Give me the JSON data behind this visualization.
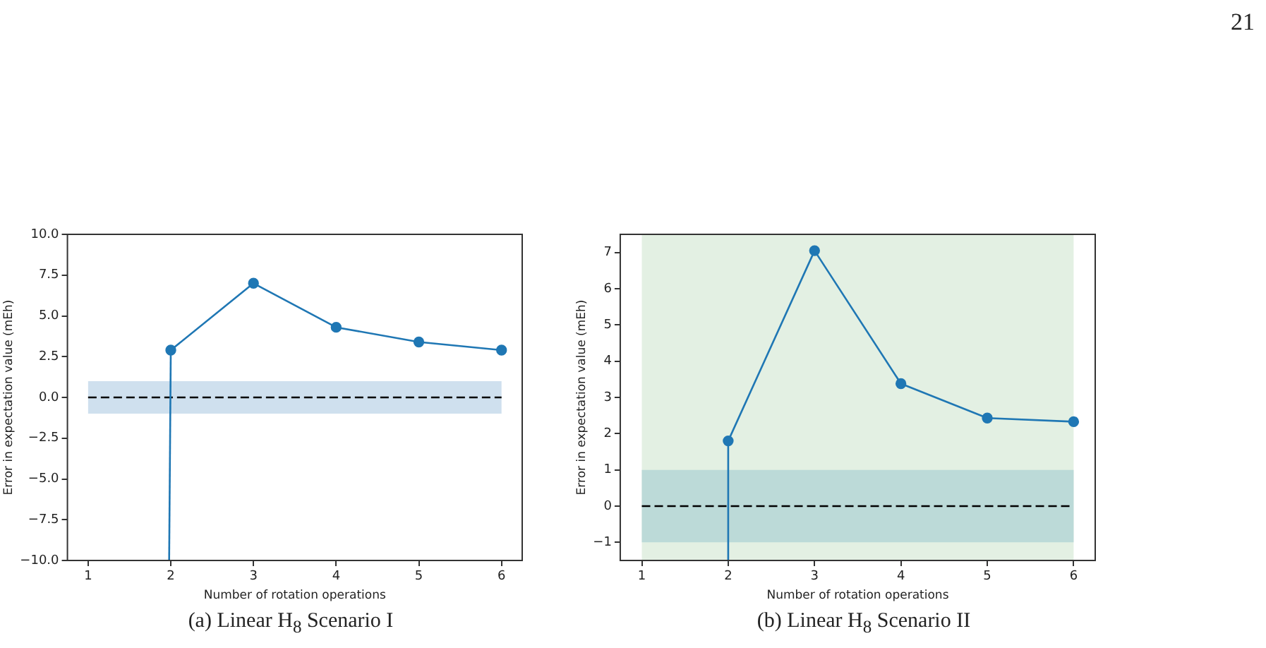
{
  "chart_data": [
    {
      "type": "line",
      "title": "(a) Linear H$_{8}$ Scenario I",
      "xlabel": "Number of rotation operations",
      "ylabel": "Error in expectation value (mEh)",
      "xlim": [
        0.75,
        6.25
      ],
      "xticks": [
        1,
        2,
        3,
        4,
        5,
        6
      ],
      "ylim": [
        -10,
        10
      ],
      "yticks": [
        {
          "value": -10,
          "label": "−10.0"
        },
        {
          "value": -7.5,
          "label": "−7.5"
        },
        {
          "value": -5,
          "label": "−5.0"
        },
        {
          "value": -2.5,
          "label": "−2.5"
        },
        {
          "value": 0,
          "label": "0.0"
        },
        {
          "value": 2.5,
          "label": "2.5"
        },
        {
          "value": 5,
          "label": "5.0"
        },
        {
          "value": 7.5,
          "label": "7.5"
        },
        {
          "value": 10,
          "label": "10.0"
        }
      ],
      "grid": false,
      "legend": false,
      "annotations": [
        "21"
      ],
      "series": [
        {
          "color": "#1f77b4",
          "x": [
            2,
            3,
            4,
            5,
            6
          ],
          "values": [
            2.9,
            7.0,
            4.3,
            3.4,
            2.9
          ],
          "marker": "circle"
        },
        {
          "color": "#1f77b4",
          "x": [
            1.98,
            2
          ],
          "values": [
            -10,
            2.9
          ],
          "marker": "none"
        }
      ],
      "bands": [
        {
          "axis": "y",
          "from": -1,
          "to": 1,
          "color": "#cfe0ee"
        }
      ],
      "ref_lines": [
        {
          "axis": "y",
          "value": 0,
          "color": "#000000",
          "line_style": "dashed"
        }
      ]
    },
    {
      "type": "line",
      "title": "(b) Linear H$_{8}$ Scenario II",
      "xlabel": "Number of rotation operations",
      "ylabel": "Error in expectation value (mEh)",
      "xlim": [
        0.75,
        6.25
      ],
      "xticks": [
        1,
        2,
        3,
        4,
        5,
        6
      ],
      "ylim": [
        -1.5,
        7.5
      ],
      "yticks": [
        {
          "value": -1,
          "label": "−1"
        },
        0,
        1,
        2,
        3,
        4,
        5,
        6,
        7
      ],
      "grid": false,
      "legend": false,
      "series": [
        {
          "color": "#1f77b4",
          "x": [
            2,
            3,
            4,
            5,
            6
          ],
          "values": [
            1.8,
            7.05,
            3.38,
            2.43,
            2.33
          ],
          "marker": "circle"
        },
        {
          "color": "#1f77b4",
          "x": [
            1.99,
            2
          ],
          "values": [
            -1.5,
            1.8
          ],
          "marker": "none"
        }
      ],
      "bands": [
        {
          "axis": "x",
          "from": 1,
          "to": 6,
          "color": "#e3f0e3"
        },
        {
          "axis": "y",
          "from": -1,
          "to": 1,
          "color": "#bcdad8"
        }
      ],
      "ref_lines": [
        {
          "axis": "y",
          "value": 0,
          "color": "#000000",
          "line_style": "dashed"
        }
      ]
    }
  ]
}
